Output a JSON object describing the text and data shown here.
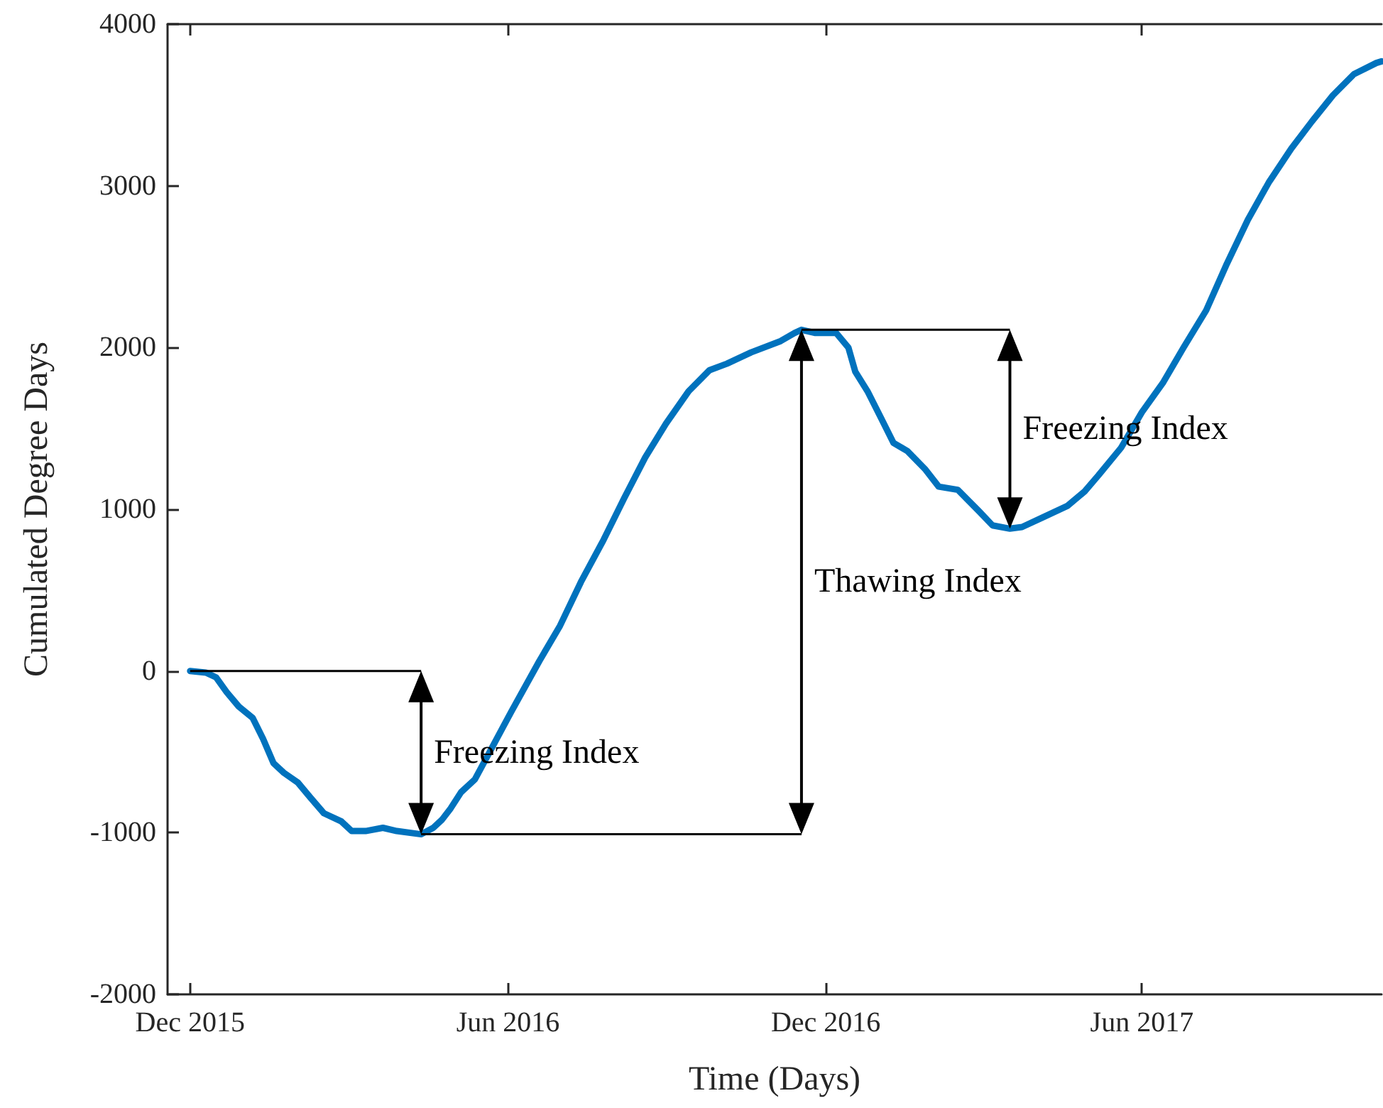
{
  "chart_data": {
    "type": "line",
    "xlabel": "Time (Days)",
    "ylabel": "Cumulated Degree Days",
    "x": [
      "2015-12-01",
      "2015-12-10",
      "2015-12-16",
      "2015-12-22",
      "2015-12-29",
      "2016-01-06",
      "2016-01-12",
      "2016-01-18",
      "2016-01-24",
      "2016-02-01",
      "2016-02-08",
      "2016-02-16",
      "2016-02-26",
      "2016-03-03",
      "2016-03-11",
      "2016-03-21",
      "2016-03-29",
      "2016-04-12",
      "2016-04-19",
      "2016-04-24",
      "2016-04-29",
      "2016-05-05",
      "2016-05-13",
      "2016-05-21",
      "2016-06-03",
      "2016-06-19",
      "2016-07-01",
      "2016-07-13",
      "2016-07-26",
      "2016-08-07",
      "2016-08-19",
      "2016-08-31",
      "2016-09-13",
      "2016-09-25",
      "2016-10-05",
      "2016-10-19",
      "2016-11-05",
      "2016-11-13",
      "2016-11-17",
      "2016-11-25",
      "2016-12-07",
      "2016-12-14",
      "2016-12-18",
      "2016-12-25",
      "2017-01-02",
      "2017-01-09",
      "2017-01-17",
      "2017-01-27",
      "2017-02-04",
      "2017-02-15",
      "2017-02-27",
      "2017-03-07",
      "2017-03-17",
      "2017-03-24",
      "2017-04-05",
      "2017-04-19",
      "2017-04-29",
      "2017-05-07",
      "2017-05-20",
      "2017-06-01",
      "2017-06-13",
      "2017-06-25",
      "2017-07-08",
      "2017-07-20",
      "2017-08-01",
      "2017-08-13",
      "2017-08-26",
      "2017-09-07",
      "2017-09-19",
      "2017-10-01",
      "2017-10-14",
      "2017-10-17"
    ],
    "series": [
      {
        "color": "#0072bd",
        "values": [
          0,
          -10,
          -40,
          -130,
          -220,
          -290,
          -420,
          -570,
          -630,
          -690,
          -780,
          -880,
          -930,
          -990,
          -990,
          -970,
          -990,
          -1010,
          -970,
          -920,
          -850,
          -750,
          -670,
          -510,
          -250,
          60,
          280,
          550,
          810,
          1070,
          1320,
          1530,
          1730,
          1860,
          1900,
          1970,
          2040,
          2090,
          2110,
          2090,
          2090,
          2000,
          1850,
          1730,
          1560,
          1410,
          1360,
          1250,
          1140,
          1120,
          990,
          900,
          880,
          890,
          950,
          1020,
          1110,
          1210,
          1380,
          1600,
          1780,
          2000,
          2230,
          2520,
          2790,
          3020,
          3230,
          3400,
          3560,
          3690,
          3760,
          3770
        ]
      }
    ],
    "xlim": [
      "2015-11-18",
      "2017-10-17"
    ],
    "xticks": [
      {
        "value": "2015-12-01",
        "label": "Dec 2015"
      },
      {
        "value": "2016-06-01",
        "label": "Jun 2016"
      },
      {
        "value": "2016-12-01",
        "label": "Dec 2016"
      },
      {
        "value": "2017-06-01",
        "label": "Jun 2017"
      }
    ],
    "ylim": [
      -2000,
      4000
    ],
    "yticks": [
      -2000,
      -1000,
      0,
      1000,
      2000,
      3000,
      4000
    ],
    "grid": false,
    "annotations": [
      "Freezing Index",
      "Thawing Index",
      "Freezing Index"
    ]
  }
}
